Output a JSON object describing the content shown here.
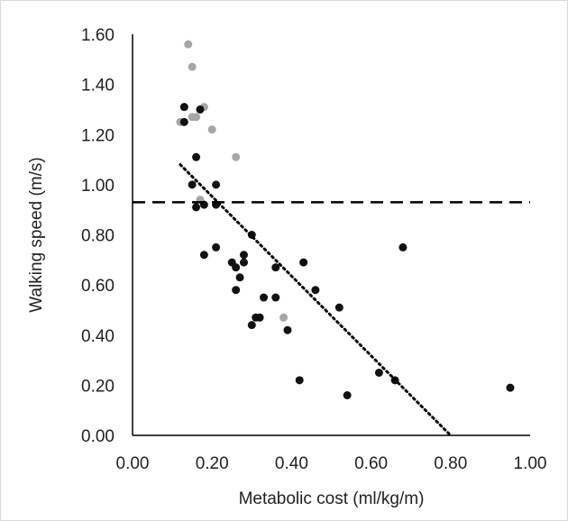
{
  "chart_data": {
    "type": "scatter",
    "title": "",
    "xlabel": "Metabolic cost (ml/kg/m)",
    "ylabel": "Walking speed (m/s)",
    "xlim": [
      0,
      1
    ],
    "ylim": [
      0,
      1.6
    ],
    "x_ticks": [
      "0.00",
      "0.20",
      "0.40",
      "0.60",
      "0.80",
      "1.00"
    ],
    "y_ticks": [
      "0.00",
      "0.20",
      "0.40",
      "0.60",
      "0.80",
      "1.00",
      "1.20",
      "1.40",
      "1.60"
    ],
    "grid": false,
    "legend": "none",
    "series": [
      {
        "color": "#111111",
        "points": [
          [
            0.13,
            1.31
          ],
          [
            0.13,
            1.25
          ],
          [
            0.16,
            1.11
          ],
          [
            0.17,
            1.3
          ],
          [
            0.15,
            1.0
          ],
          [
            0.21,
            1.0
          ],
          [
            0.16,
            0.91
          ],
          [
            0.18,
            0.92
          ],
          [
            0.21,
            0.92
          ],
          [
            0.18,
            0.72
          ],
          [
            0.21,
            0.75
          ],
          [
            0.3,
            0.8
          ],
          [
            0.25,
            0.69
          ],
          [
            0.26,
            0.67
          ],
          [
            0.28,
            0.72
          ],
          [
            0.28,
            0.69
          ],
          [
            0.27,
            0.63
          ],
          [
            0.26,
            0.58
          ],
          [
            0.36,
            0.67
          ],
          [
            0.43,
            0.69
          ],
          [
            0.33,
            0.55
          ],
          [
            0.36,
            0.55
          ],
          [
            0.46,
            0.58
          ],
          [
            0.52,
            0.51
          ],
          [
            0.3,
            0.44
          ],
          [
            0.31,
            0.47
          ],
          [
            0.32,
            0.47
          ],
          [
            0.39,
            0.42
          ],
          [
            0.42,
            0.22
          ],
          [
            0.54,
            0.16
          ],
          [
            0.62,
            0.25
          ],
          [
            0.66,
            0.22
          ],
          [
            0.68,
            0.75
          ],
          [
            0.95,
            0.19
          ]
        ]
      },
      {
        "color": "#a6a6a6",
        "points": [
          [
            0.14,
            1.56
          ],
          [
            0.15,
            1.47
          ],
          [
            0.12,
            1.25
          ],
          [
            0.15,
            1.27
          ],
          [
            0.16,
            1.27
          ],
          [
            0.18,
            1.31
          ],
          [
            0.2,
            1.22
          ],
          [
            0.26,
            1.11
          ],
          [
            0.17,
            0.94
          ],
          [
            0.38,
            0.47
          ]
        ]
      }
    ],
    "reference_line": {
      "y": 0.93,
      "style": "dashed",
      "color": "#000000"
    },
    "trendline": {
      "style": "dotted",
      "color": "#000000",
      "from": [
        0.12,
        1.08
      ],
      "to": [
        0.8,
        0.0
      ]
    }
  }
}
